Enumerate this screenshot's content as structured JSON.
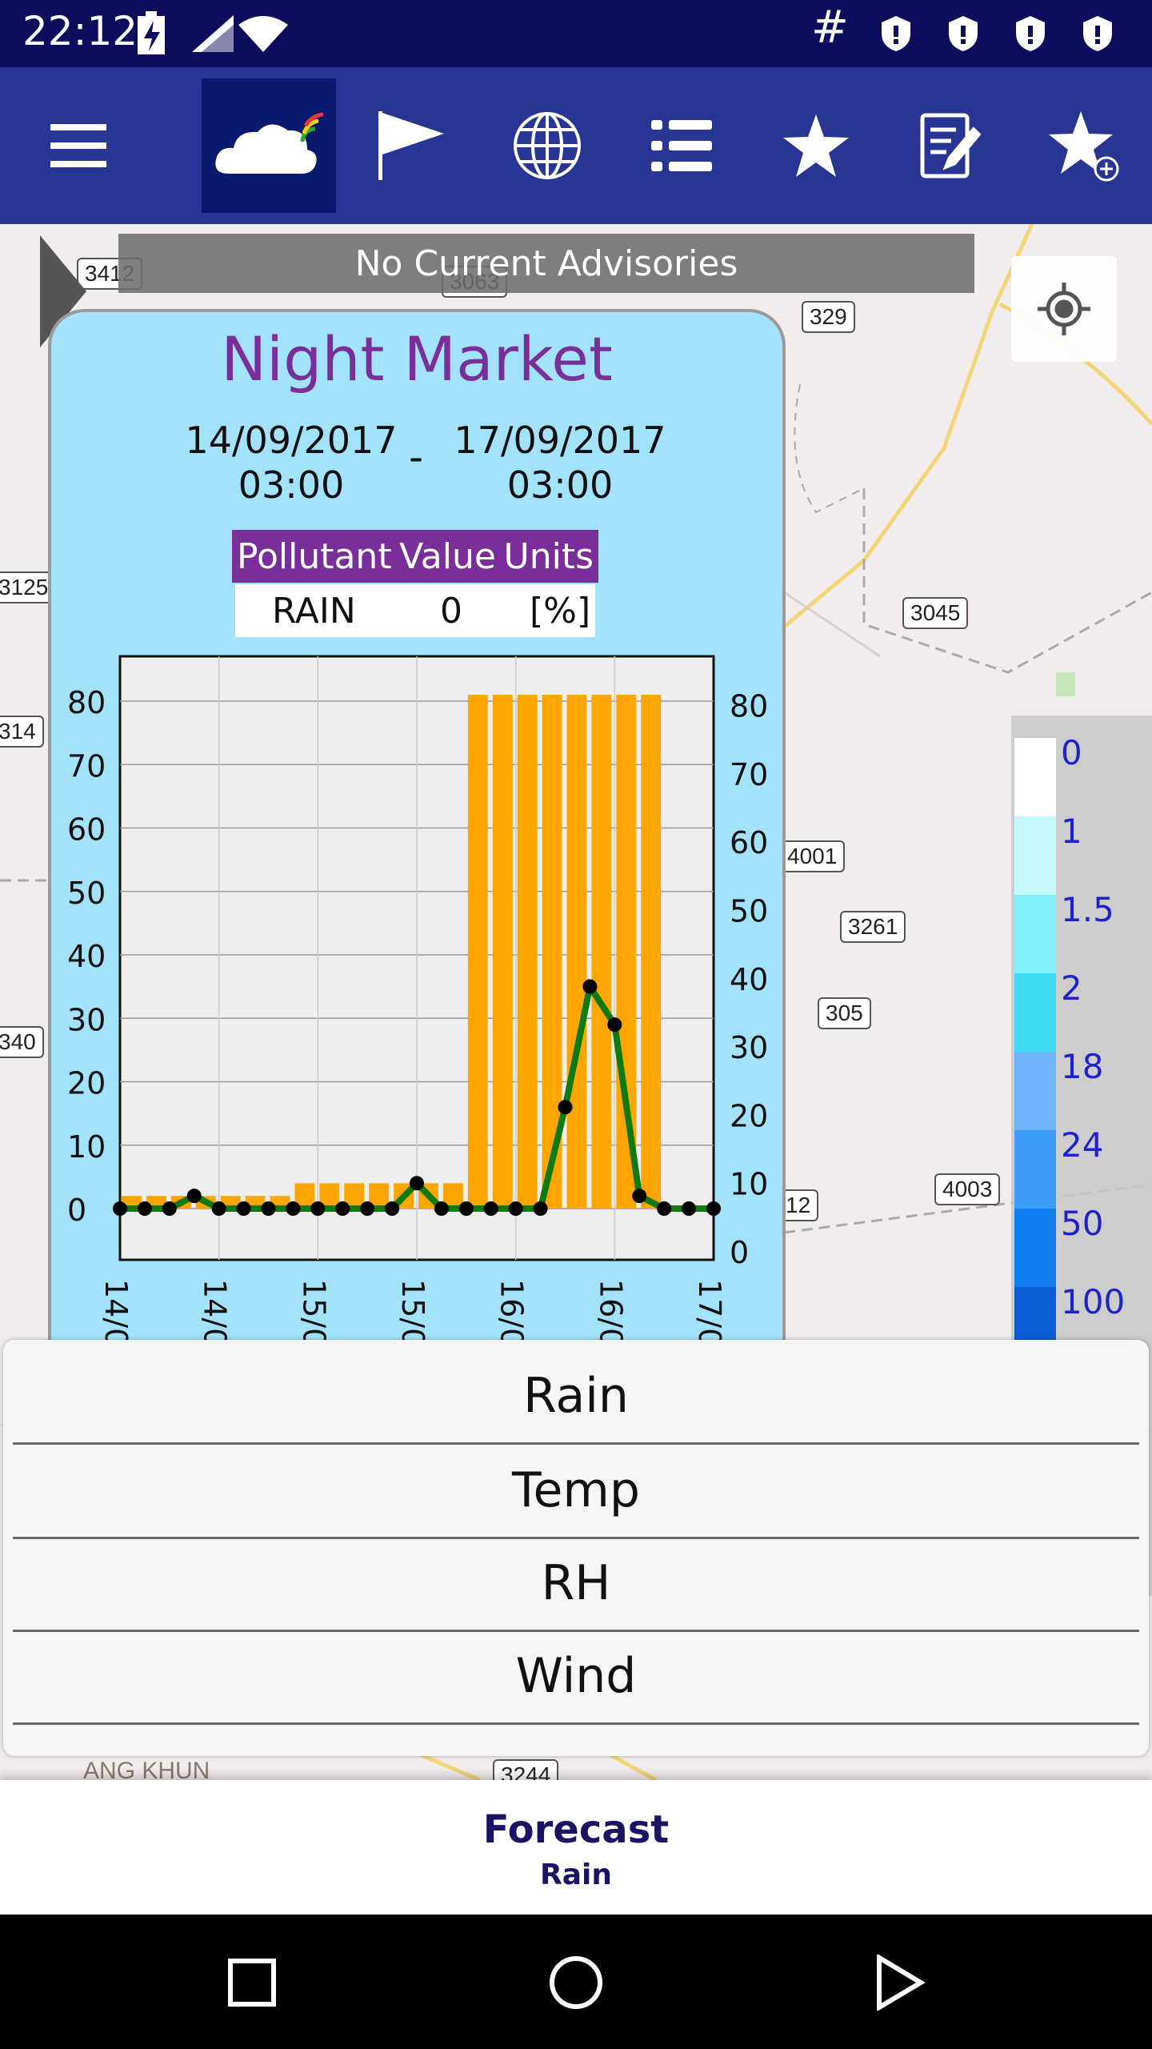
{
  "status_bar": {
    "time": "22:12",
    "hash": "#"
  },
  "toolbar": {
    "items": [
      "menu-icon",
      "weather-app-icon",
      "flag-icon",
      "globe-icon",
      "list-icon",
      "star-icon",
      "edit-note-icon",
      "star-add-icon"
    ]
  },
  "map": {
    "advisory": "No Current Advisories",
    "road_labels": [
      "3412",
      "3063",
      "329",
      "3125",
      "3045",
      "314",
      "4001",
      "3261",
      "305",
      "340",
      "12",
      "4003",
      "3244"
    ],
    "place_label": "ANG KHUN"
  },
  "popup": {
    "title": "Night Market",
    "start_date": "14/09/2017",
    "start_time": "03:00",
    "separator": "-",
    "end_date": "17/09/2017",
    "end_time": "03:00",
    "table": {
      "headers": [
        "Pollutant",
        "Value",
        "Units"
      ],
      "row": [
        "RAIN",
        "0",
        "[%]"
      ]
    }
  },
  "chart_data": {
    "type": "bar",
    "left_axis_ticks": [
      "0",
      "10",
      "20",
      "30",
      "40",
      "50",
      "60",
      "70",
      "80"
    ],
    "right_axis_ticks": [
      "0",
      "10",
      "20",
      "30",
      "40",
      "50",
      "60",
      "70",
      "80"
    ],
    "x_tick_labels": [
      "14/0",
      "14/0",
      "15/0",
      "15/0",
      "16/0",
      "16/0",
      "17/0"
    ],
    "ylim": [
      0,
      85
    ],
    "bar_values": [
      2,
      2,
      2,
      2,
      2,
      2,
      2,
      4,
      4,
      4,
      4,
      4,
      4,
      4,
      81,
      81,
      81,
      81,
      81,
      81,
      81,
      81,
      0,
      0
    ],
    "line_series": {
      "color": "#0f7a0f",
      "values": [
        0,
        0,
        0,
        2,
        0,
        0,
        0,
        0,
        0,
        0,
        0,
        0,
        4,
        0,
        0,
        0,
        0,
        0,
        16,
        35,
        29,
        2,
        0,
        0,
        0
      ]
    },
    "bar_color": "#ffa500",
    "grid": true
  },
  "legend": {
    "labels": [
      "0",
      "1",
      "1.5",
      "2",
      "18",
      "24",
      "50",
      "100"
    ],
    "colors": [
      "#ffffff",
      "#c4f8fb",
      "#7ff0f8",
      "#3fdcf3",
      "#6db4f8",
      "#3d9cf6",
      "#117ff2",
      "#0a5ed8"
    ]
  },
  "bottom_sheet": {
    "items": [
      "Rain",
      "Temp",
      "RH",
      "Wind"
    ]
  },
  "forecast": {
    "title": "Forecast",
    "subtitle": "Rain"
  },
  "nav": [
    "recents-square-icon",
    "home-circle-icon",
    "back-triangle-icon"
  ]
}
